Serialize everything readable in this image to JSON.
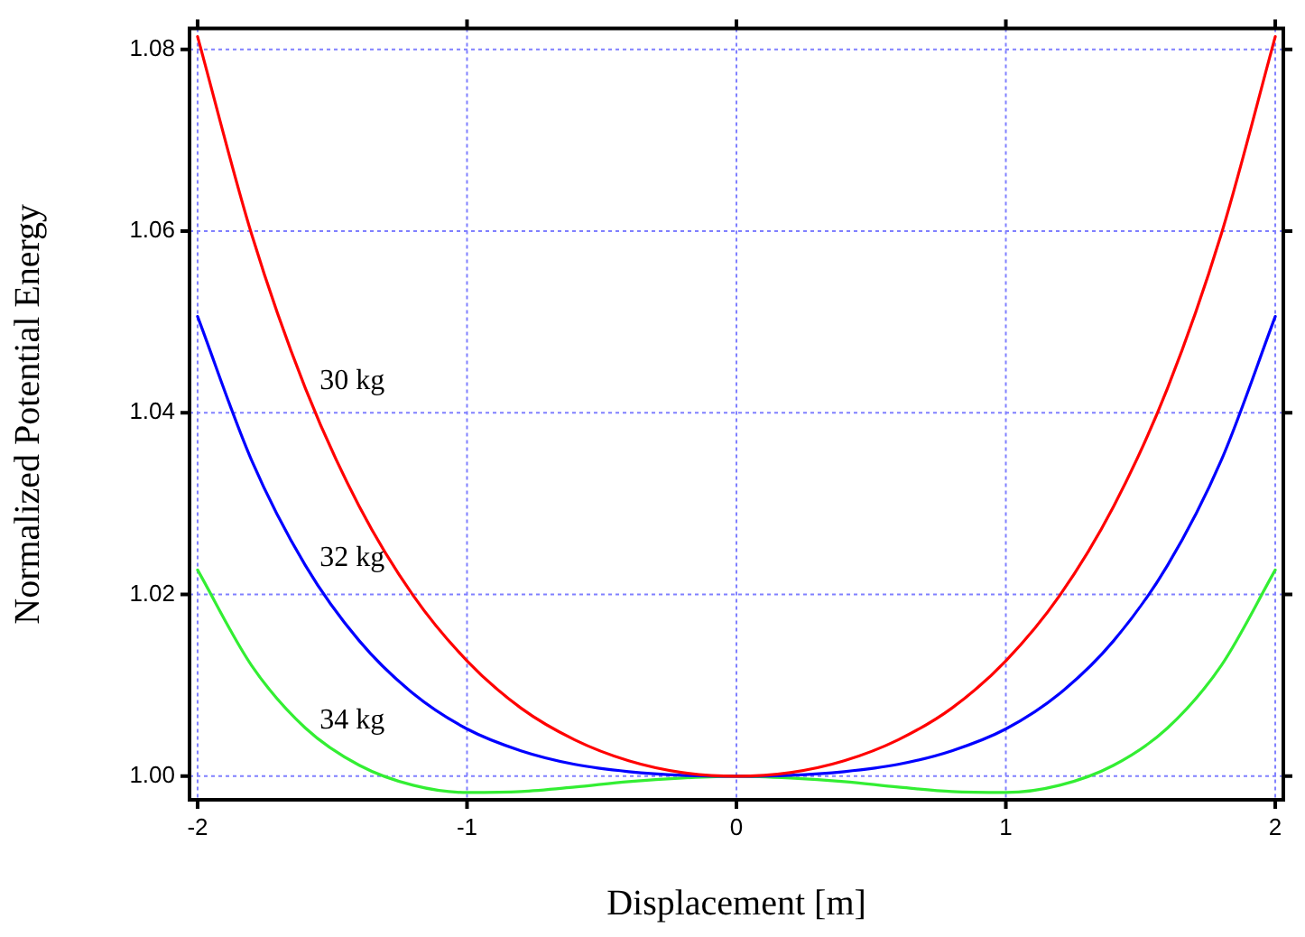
{
  "chart_data": {
    "type": "line",
    "xlabel": "Displacement [m]",
    "ylabel": "Normalized Potential Energy",
    "x": [
      -2,
      -1.8,
      -1.6,
      -1.4,
      -1.2,
      -1,
      -0.8,
      -0.6,
      -0.4,
      -0.2,
      0,
      0.2,
      0.4,
      0.6,
      0.8,
      1,
      1.2,
      1.4,
      1.6,
      1.8,
      2
    ],
    "series": [
      {
        "name": "30 kg",
        "color": "#ff0000",
        "values": [
          1.0814,
          1.0597,
          1.0427,
          1.0297,
          1.0199,
          1.0127,
          1.0075,
          1.004,
          1.0017,
          1.0004,
          1,
          1.0004,
          1.0017,
          1.004,
          1.0075,
          1.0127,
          1.0199,
          1.0297,
          1.0427,
          1.0597,
          1.0814
        ]
      },
      {
        "name": "32 kg",
        "color": "#0000ff",
        "values": [
          1.0506,
          1.0348,
          1.0232,
          1.0149,
          1.0091,
          1.0052,
          1.0028,
          1.0013,
          1.0005,
          1.0001,
          1,
          1.0001,
          1.0005,
          1.0013,
          1.0028,
          1.0052,
          1.0091,
          1.0149,
          1.0232,
          1.0348,
          1.0506
        ]
      },
      {
        "name": "34 kg",
        "color": "#33ee33",
        "values": [
          1.0227,
          1.0122,
          1.0053,
          1.0012,
          0.999,
          0.9982,
          0.9983,
          0.9988,
          0.9994,
          0.9998,
          1,
          0.9998,
          0.9994,
          0.9988,
          0.9983,
          0.9982,
          0.999,
          1.0012,
          1.0053,
          1.0122,
          1.0227
        ]
      }
    ],
    "xlim": [
      -2.03,
      2.03
    ],
    "xticks": [
      -2,
      -1,
      0,
      1,
      2
    ],
    "ylim": [
      0.9974,
      1.0823
    ],
    "yticks": [
      {
        "value": 1,
        "label": "1.00"
      },
      {
        "value": 1.02,
        "label": "1.02"
      },
      {
        "value": 1.04,
        "label": "1.04"
      },
      {
        "value": 1.06,
        "label": "1.06"
      },
      {
        "value": 1.08,
        "label": "1.08"
      }
    ],
    "grid": true,
    "legend": false,
    "marker": "none",
    "line_style": "solid"
  }
}
